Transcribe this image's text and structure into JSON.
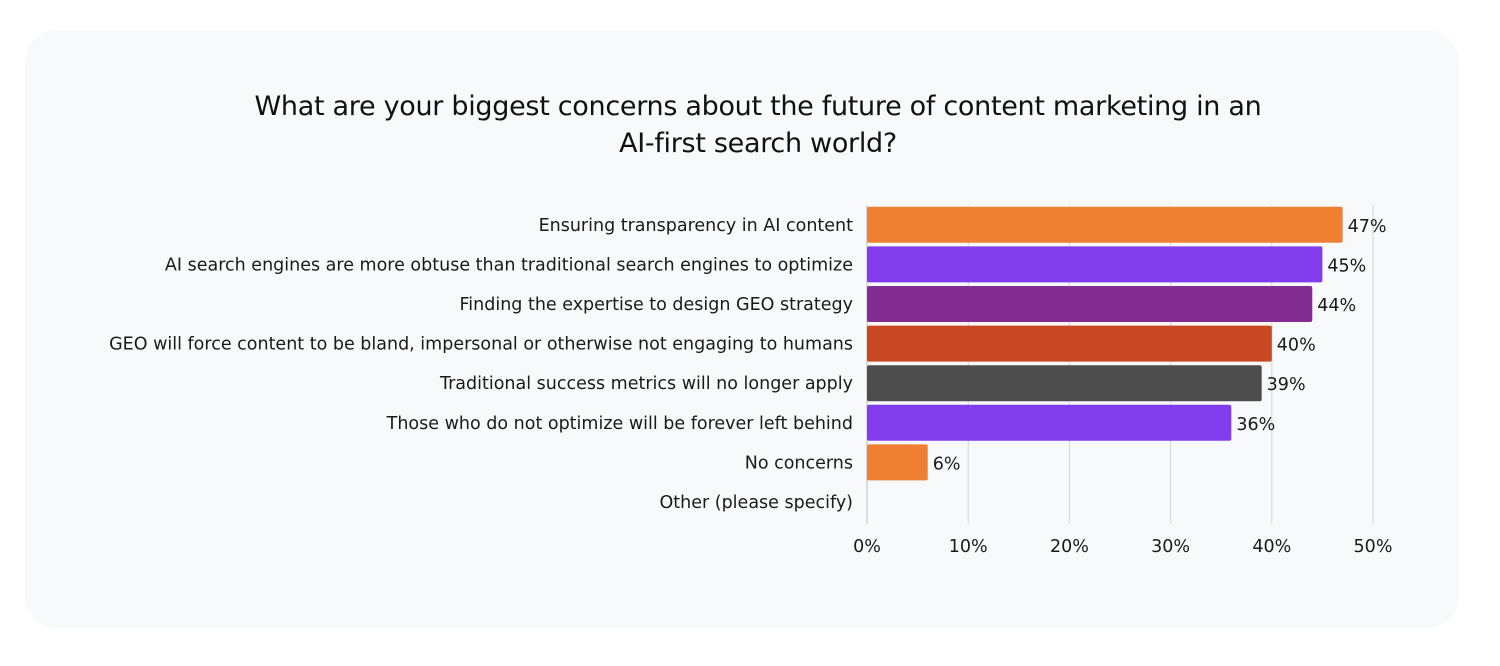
{
  "chart_data": {
    "type": "bar",
    "orientation": "horizontal",
    "title": "What are your biggest concerns about the future of content marketing in an AI-first search world?",
    "title_lines": [
      "What are your biggest concerns about the future of content marketing in an",
      "AI-first search world?"
    ],
    "categories": [
      "Ensuring transparency in AI content",
      "AI search engines are more obtuse than traditional search engines to optimize",
      "Finding the expertise to design GEO strategy",
      "GEO will force content to be bland, impersonal or otherwise not engaging to humans",
      "Traditional success metrics will no longer apply",
      "Those who do not optimize will be forever left behind",
      "No concerns",
      "Other (please specify)"
    ],
    "values": [
      47,
      45,
      44,
      40,
      39,
      36,
      6,
      0
    ],
    "value_labels": [
      "47%",
      "45%",
      "44%",
      "40%",
      "39%",
      "36%",
      "6%",
      ""
    ],
    "colors": [
      "#ef8033",
      "#813deb",
      "#832c91",
      "#c94722",
      "#4d4d4d",
      "#813deb",
      "#ef8033",
      "#ef8033"
    ],
    "xlabel": "",
    "ylabel": "",
    "xlim": [
      0,
      50
    ],
    "xticks": [
      0,
      10,
      20,
      30,
      40,
      50
    ],
    "xtick_labels": [
      "0%",
      "10%",
      "20%",
      "30%",
      "40%",
      "50%"
    ],
    "grid": "vertical",
    "legend": "none"
  }
}
